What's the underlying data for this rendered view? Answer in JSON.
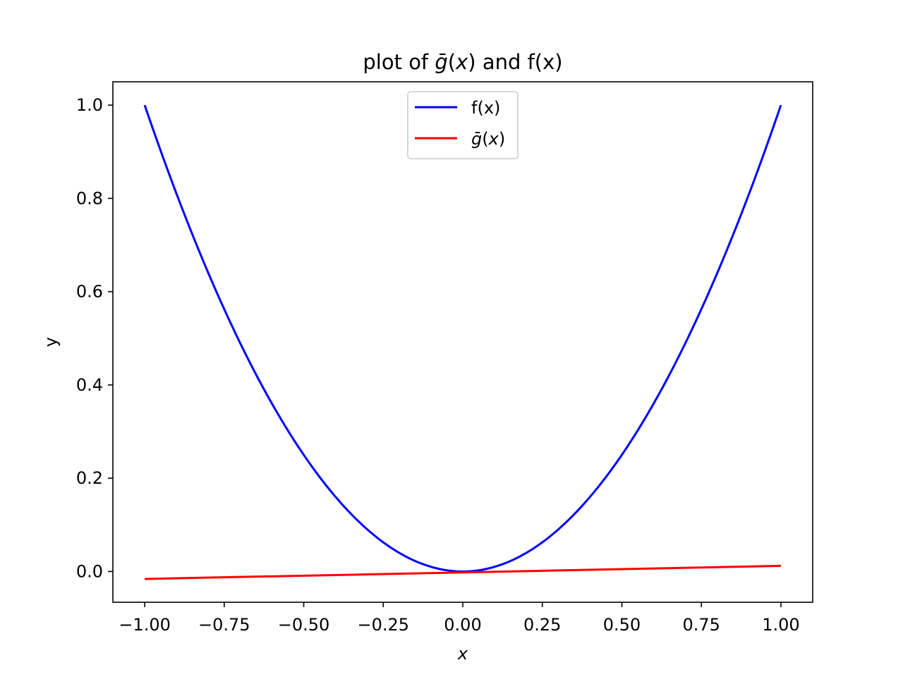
{
  "chart_data": {
    "type": "line",
    "title": "plot of ḡ(x) and f(x)",
    "xlabel": "x",
    "ylabel": "y",
    "xlim": [
      -1.1,
      1.1
    ],
    "ylim": [
      -0.066,
      1.05
    ],
    "x_ticks": [
      -1.0,
      -0.75,
      -0.5,
      -0.25,
      0.0,
      0.25,
      0.5,
      0.75,
      1.0
    ],
    "x_tick_labels": [
      "−1.00",
      "−0.75",
      "−0.50",
      "−0.25",
      "0.00",
      "0.25",
      "0.50",
      "0.75",
      "1.00"
    ],
    "y_ticks": [
      0.0,
      0.2,
      0.4,
      0.6,
      0.8,
      1.0
    ],
    "y_tick_labels": [
      "0.0",
      "0.2",
      "0.4",
      "0.6",
      "0.8",
      "1.0"
    ],
    "grid": false,
    "legend_position": "upper center",
    "series": [
      {
        "name": "f(x)",
        "color": "#0000ff",
        "x": [
          -1.0,
          -0.9,
          -0.8,
          -0.7,
          -0.6,
          -0.5,
          -0.4,
          -0.3,
          -0.2,
          -0.1,
          0.0,
          0.1,
          0.2,
          0.3,
          0.4,
          0.5,
          0.6,
          0.7,
          0.8,
          0.9,
          1.0
        ],
        "y": [
          1.0,
          0.81,
          0.64,
          0.49,
          0.36,
          0.25,
          0.16,
          0.09,
          0.04,
          0.01,
          0.0,
          0.01,
          0.04,
          0.09,
          0.16,
          0.25,
          0.36,
          0.49,
          0.64,
          0.81,
          1.0
        ]
      },
      {
        "name": "ḡ(x)",
        "color": "#ff0000",
        "x": [
          -1.0,
          1.0
        ],
        "y": [
          -0.016,
          0.012
        ]
      }
    ]
  }
}
